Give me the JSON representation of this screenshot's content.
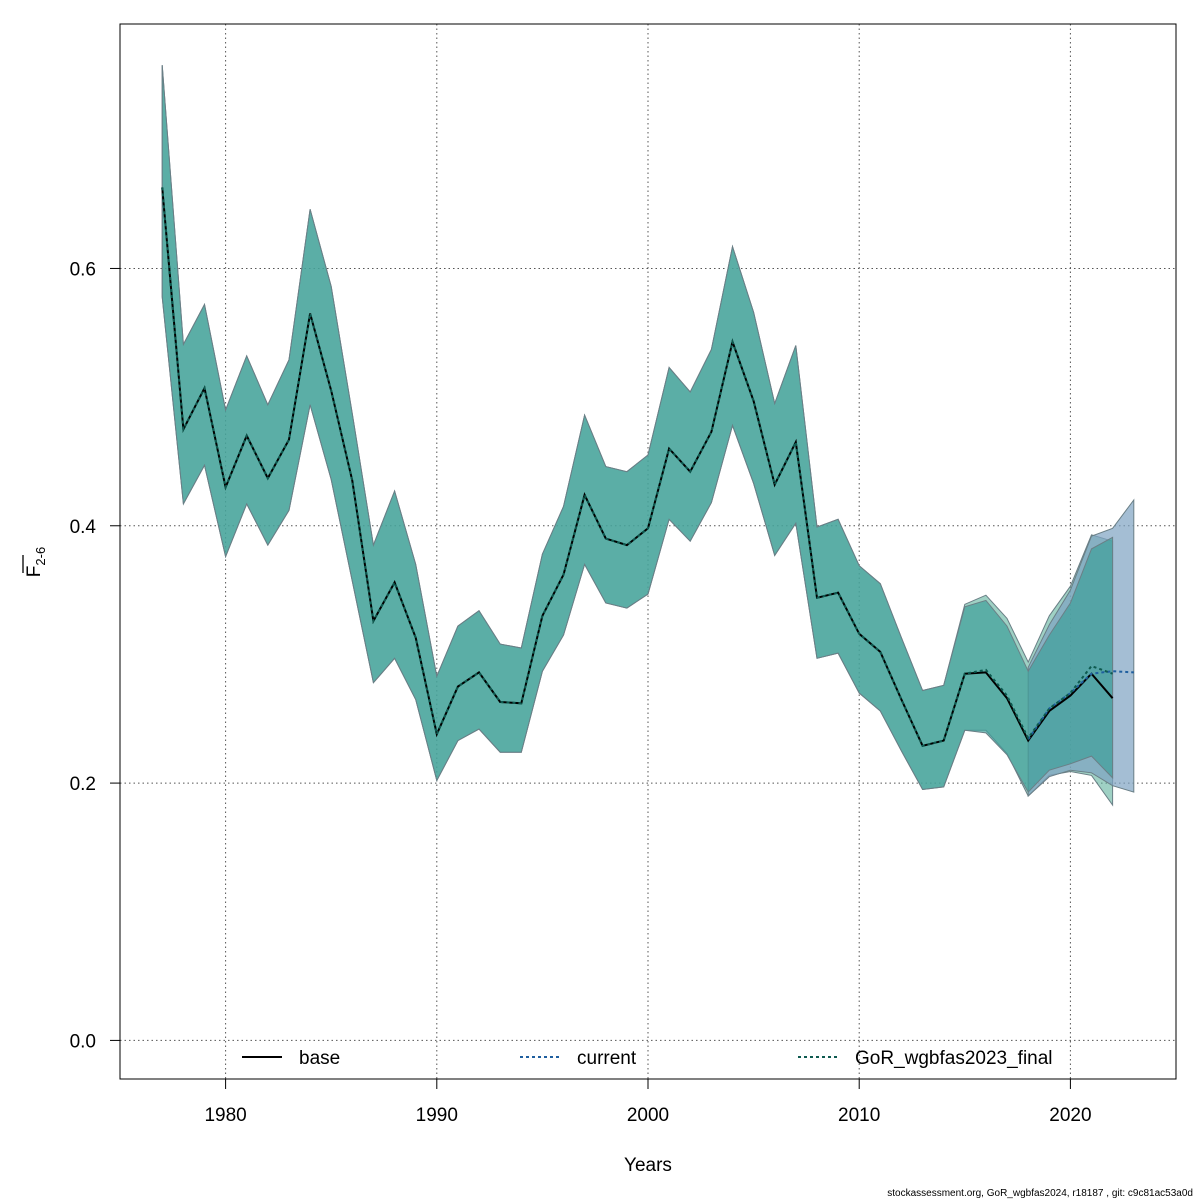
{
  "chart_data": {
    "type": "line",
    "title": "",
    "xlabel": "Years",
    "ylabel": "F̄2-6",
    "ylabel_main": "F",
    "ylabel_sub": "2-6",
    "xlim": [
      1975,
      2025
    ],
    "ylim": [
      -0.03,
      0.79
    ],
    "xticks": [
      1980,
      1990,
      2000,
      2010,
      2020
    ],
    "yticks": [
      0.0,
      0.2,
      0.4,
      0.6
    ],
    "ytick_labels": [
      "0.0",
      "0.2",
      "0.4",
      "0.6"
    ],
    "grid": true,
    "legend_position": "bottom",
    "legend": [
      {
        "label": "base",
        "style": "solid",
        "color": "#000000"
      },
      {
        "label": "current",
        "style": "dotted",
        "color": "#1f5f9f"
      },
      {
        "label": "GoR_wgbfas2023_final",
        "style": "dotted",
        "color": "#0e5a50"
      }
    ],
    "colors": {
      "band_base": "#3f9f9a",
      "band_prev": "#5fb39c",
      "band_current": "#7ea3c2",
      "band_stroke": "#6a7f86",
      "grid": "#555555"
    },
    "years": [
      1977,
      1978,
      1979,
      1980,
      1981,
      1982,
      1983,
      1984,
      1985,
      1986,
      1987,
      1988,
      1989,
      1990,
      1991,
      1992,
      1993,
      1994,
      1995,
      1996,
      1997,
      1998,
      1999,
      2000,
      2001,
      2002,
      2003,
      2004,
      2005,
      2006,
      2007,
      2008,
      2009,
      2010,
      2011,
      2012,
      2013,
      2014,
      2015,
      2016,
      2017,
      2018,
      2019,
      2020,
      2021,
      2022,
      2023
    ],
    "series": [
      {
        "name": "base",
        "x": [
          1977,
          1978,
          1979,
          1980,
          1981,
          1982,
          1983,
          1984,
          1985,
          1986,
          1987,
          1988,
          1989,
          1990,
          1991,
          1992,
          1993,
          1994,
          1995,
          1996,
          1997,
          1998,
          1999,
          2000,
          2001,
          2002,
          2003,
          2004,
          2005,
          2006,
          2007,
          2008,
          2009,
          2010,
          2011,
          2012,
          2013,
          2014,
          2015,
          2016,
          2017,
          2018,
          2019,
          2020,
          2021,
          2022
        ],
        "values": [
          0.663,
          0.475,
          0.507,
          0.43,
          0.47,
          0.437,
          0.467,
          0.565,
          0.505,
          0.435,
          0.326,
          0.356,
          0.313,
          0.238,
          0.275,
          0.286,
          0.263,
          0.262,
          0.33,
          0.362,
          0.424,
          0.39,
          0.385,
          0.398,
          0.46,
          0.442,
          0.473,
          0.543,
          0.497,
          0.432,
          0.465,
          0.344,
          0.348,
          0.316,
          0.302,
          0.265,
          0.229,
          0.233,
          0.285,
          0.286,
          0.266,
          0.233,
          0.256,
          0.268,
          0.285,
          0.266
        ],
        "lower": [
          0.578,
          0.417,
          0.447,
          0.376,
          0.417,
          0.385,
          0.412,
          0.494,
          0.436,
          0.357,
          0.278,
          0.297,
          0.265,
          0.202,
          0.233,
          0.242,
          0.224,
          0.224,
          0.287,
          0.315,
          0.37,
          0.34,
          0.336,
          0.347,
          0.405,
          0.388,
          0.418,
          0.478,
          0.433,
          0.377,
          0.402,
          0.297,
          0.301,
          0.27,
          0.256,
          0.225,
          0.195,
          0.197,
          0.241,
          0.239,
          0.222,
          0.193,
          0.21,
          0.215,
          0.221,
          0.204
        ],
        "upper": [
          0.758,
          0.541,
          0.572,
          0.49,
          0.532,
          0.494,
          0.529,
          0.646,
          0.586,
          0.487,
          0.385,
          0.427,
          0.37,
          0.283,
          0.322,
          0.334,
          0.308,
          0.305,
          0.378,
          0.415,
          0.486,
          0.446,
          0.442,
          0.455,
          0.523,
          0.504,
          0.537,
          0.617,
          0.566,
          0.495,
          0.54,
          0.399,
          0.405,
          0.369,
          0.355,
          0.313,
          0.272,
          0.276,
          0.337,
          0.342,
          0.322,
          0.287,
          0.315,
          0.34,
          0.382,
          0.391
        ]
      },
      {
        "name": "current",
        "x": [
          2018,
          2019,
          2020,
          2021,
          2022,
          2023
        ],
        "values": [
          0.234,
          0.258,
          0.27,
          0.285,
          0.287,
          0.286
        ],
        "lower": [
          0.19,
          0.205,
          0.21,
          0.208,
          0.198,
          0.193
        ],
        "upper": [
          0.29,
          0.323,
          0.35,
          0.392,
          0.398,
          0.42
        ]
      },
      {
        "name": "GoR_wgbfas2023_final",
        "x": [
          1977,
          1978,
          1979,
          1980,
          1981,
          1982,
          1983,
          1984,
          1985,
          1986,
          1987,
          1988,
          1989,
          1990,
          1991,
          1992,
          1993,
          1994,
          1995,
          1996,
          1997,
          1998,
          1999,
          2000,
          2001,
          2002,
          2003,
          2004,
          2005,
          2006,
          2007,
          2008,
          2009,
          2010,
          2011,
          2012,
          2013,
          2014,
          2015,
          2016,
          2017,
          2018,
          2019,
          2020,
          2021,
          2022
        ],
        "values": [
          0.663,
          0.475,
          0.507,
          0.43,
          0.47,
          0.437,
          0.467,
          0.565,
          0.505,
          0.435,
          0.326,
          0.356,
          0.313,
          0.238,
          0.275,
          0.286,
          0.263,
          0.262,
          0.33,
          0.362,
          0.424,
          0.39,
          0.385,
          0.398,
          0.46,
          0.442,
          0.473,
          0.543,
          0.497,
          0.432,
          0.465,
          0.344,
          0.348,
          0.316,
          0.302,
          0.265,
          0.229,
          0.233,
          0.285,
          0.288,
          0.268,
          0.235,
          0.258,
          0.27,
          0.291,
          0.285
        ],
        "lower": [
          0.578,
          0.417,
          0.447,
          0.376,
          0.417,
          0.385,
          0.412,
          0.494,
          0.436,
          0.357,
          0.278,
          0.297,
          0.265,
          0.202,
          0.233,
          0.242,
          0.224,
          0.224,
          0.287,
          0.315,
          0.37,
          0.34,
          0.336,
          0.347,
          0.405,
          0.388,
          0.418,
          0.478,
          0.433,
          0.377,
          0.402,
          0.297,
          0.301,
          0.27,
          0.256,
          0.225,
          0.195,
          0.197,
          0.241,
          0.241,
          0.223,
          0.19,
          0.206,
          0.209,
          0.206,
          0.183
        ],
        "upper": [
          0.758,
          0.541,
          0.572,
          0.49,
          0.532,
          0.494,
          0.529,
          0.646,
          0.586,
          0.487,
          0.385,
          0.427,
          0.37,
          0.283,
          0.322,
          0.334,
          0.308,
          0.305,
          0.378,
          0.415,
          0.486,
          0.446,
          0.442,
          0.455,
          0.523,
          0.504,
          0.537,
          0.617,
          0.566,
          0.495,
          0.54,
          0.399,
          0.405,
          0.369,
          0.355,
          0.313,
          0.272,
          0.276,
          0.339,
          0.346,
          0.328,
          0.294,
          0.33,
          0.353,
          0.393,
          0.388
        ]
      }
    ]
  },
  "footer": {
    "credit": "stockassessment.org, GoR_wgbfas2024, r18187 , git: c9c81ac53a0d"
  }
}
